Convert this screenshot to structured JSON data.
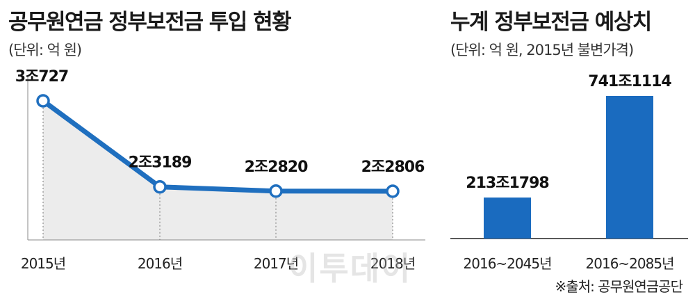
{
  "left_chart": {
    "title": "공무원연금 정부보전금 투입 현황",
    "unit": "(단위: 억 원)"
  },
  "right_chart": {
    "title": "누계 정부보전금 예상치",
    "unit": "(단위: 억 원, 2015년 불변가격)"
  },
  "source": "※출처: 공무원연금공단",
  "watermark": "이투데이",
  "colors": {
    "line": "#1f6fbf",
    "bar": "#1a6bbf",
    "area": "#ececec",
    "axis": "#888888"
  },
  "chart_data": [
    {
      "type": "line",
      "x": [
        "2015년",
        "2016년",
        "2017년",
        "2018년"
      ],
      "values": [
        30727,
        23189,
        22820,
        22806
      ],
      "data_labels": [
        "3조727",
        "2조3189",
        "2조2820",
        "2조2806"
      ],
      "area_fill": true
    },
    {
      "type": "bar",
      "categories": [
        "2016~2045년",
        "2016~2085년"
      ],
      "values": [
        2131798,
        7411114
      ],
      "data_labels": [
        "213조1798",
        "741조1114"
      ]
    }
  ]
}
